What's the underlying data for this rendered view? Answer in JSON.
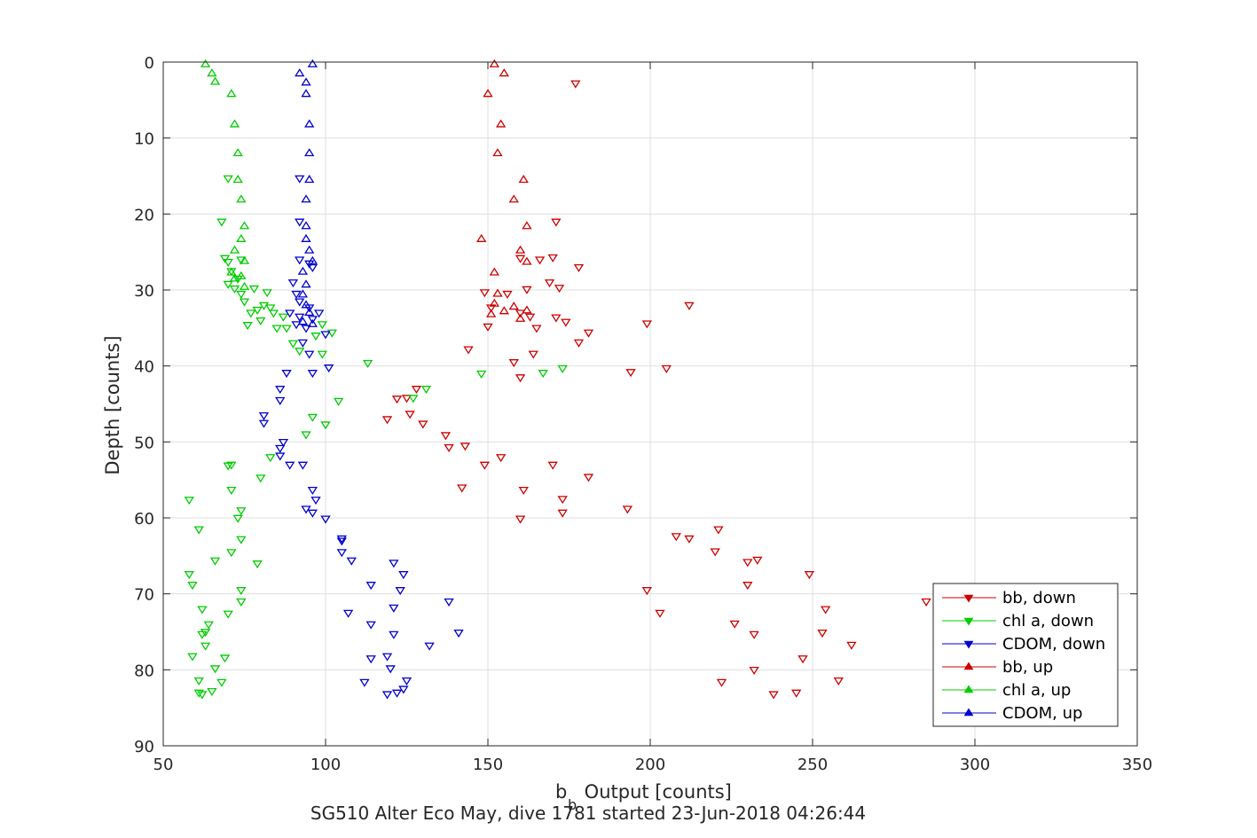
{
  "chart_data": {
    "type": "scatter",
    "xlabel_main": "b",
    "xlabel_sub": "b",
    "xlabel_rest": " Output [counts]",
    "ylabel": "Depth [counts]",
    "subtitle": "SG510 Alter Eco May, dive 1781 started 23-Jun-2018 04:26:44",
    "xlim": [
      50,
      350
    ],
    "ylim": [
      0,
      90
    ],
    "y_reversed": true,
    "xticks": [
      50,
      100,
      150,
      200,
      250,
      300,
      350
    ],
    "yticks": [
      0,
      10,
      20,
      30,
      40,
      50,
      60,
      70,
      80,
      90
    ],
    "grid": true,
    "legend_position": "bottom-right",
    "series": [
      {
        "name": "bb, down",
        "color": "#cc0000",
        "marker": "triangle-down",
        "points": [
          [
            177,
            2.8
          ],
          [
            171,
            21
          ],
          [
            160,
            25.8
          ],
          [
            166,
            26
          ],
          [
            170,
            25.7
          ],
          [
            178,
            27
          ],
          [
            149,
            30.3
          ],
          [
            156,
            30.5
          ],
          [
            172,
            29.7
          ],
          [
            169,
            29
          ],
          [
            162,
            29.9
          ],
          [
            151,
            32.3
          ],
          [
            160,
            33
          ],
          [
            163,
            33.5
          ],
          [
            171,
            33.6
          ],
          [
            174,
            34.2
          ],
          [
            212,
            32
          ],
          [
            199,
            34.4
          ],
          [
            181,
            35.6
          ],
          [
            178,
            36.9
          ],
          [
            165,
            35
          ],
          [
            150,
            34.8
          ],
          [
            164,
            38.4
          ],
          [
            158,
            39.5
          ],
          [
            160,
            41.5
          ],
          [
            194,
            40.8
          ],
          [
            205,
            40.3
          ],
          [
            144,
            37.8
          ],
          [
            122,
            44.3
          ],
          [
            125,
            44.2
          ],
          [
            128,
            43
          ],
          [
            126,
            46.3
          ],
          [
            119,
            47
          ],
          [
            130,
            47.6
          ],
          [
            137,
            49.1
          ],
          [
            138,
            50.7
          ],
          [
            143,
            50.5
          ],
          [
            149,
            53
          ],
          [
            154,
            52
          ],
          [
            170,
            53
          ],
          [
            181,
            54.6
          ],
          [
            142,
            56
          ],
          [
            161,
            56.3
          ],
          [
            173,
            57.5
          ],
          [
            173,
            59.3
          ],
          [
            160,
            60.1
          ],
          [
            193,
            58.8
          ],
          [
            208,
            62.4
          ],
          [
            212,
            62.7
          ],
          [
            221,
            61.5
          ],
          [
            220,
            64.4
          ],
          [
            230,
            65.8
          ],
          [
            233,
            65.5
          ],
          [
            249,
            67.4
          ],
          [
            230,
            68.8
          ],
          [
            199,
            69.5
          ],
          [
            203,
            72.5
          ],
          [
            226,
            73.9
          ],
          [
            232,
            75.3
          ],
          [
            253,
            75.1
          ],
          [
            254,
            72
          ],
          [
            262,
            76.7
          ],
          [
            285,
            71
          ],
          [
            247,
            78.5
          ],
          [
            232,
            80
          ],
          [
            222,
            81.6
          ],
          [
            238,
            83.2
          ],
          [
            245,
            83
          ],
          [
            258,
            81.4
          ]
        ]
      },
      {
        "name": "chl a, down",
        "color": "#00cc00",
        "marker": "triangle-down",
        "points": [
          [
            70,
            15.3
          ],
          [
            68,
            21
          ],
          [
            70,
            26.3
          ],
          [
            71,
            27.5
          ],
          [
            69,
            25.8
          ],
          [
            74,
            26
          ],
          [
            73,
            28.5
          ],
          [
            70,
            29.2
          ],
          [
            72,
            29.8
          ],
          [
            74,
            30.5
          ],
          [
            75,
            31.5
          ],
          [
            78,
            29.8
          ],
          [
            82,
            30.3
          ],
          [
            81,
            32
          ],
          [
            77,
            33
          ],
          [
            79,
            32.6
          ],
          [
            84,
            33
          ],
          [
            87,
            33.5
          ],
          [
            76,
            34.6
          ],
          [
            80,
            34
          ],
          [
            85,
            35
          ],
          [
            88,
            35
          ],
          [
            83,
            32.3
          ],
          [
            99,
            34.5
          ],
          [
            97,
            36
          ],
          [
            90,
            37
          ],
          [
            92,
            38
          ],
          [
            102,
            35.6
          ],
          [
            99,
            38.4
          ],
          [
            113,
            39.6
          ],
          [
            148,
            41
          ],
          [
            167,
            40.9
          ],
          [
            173,
            40.3
          ],
          [
            104,
            44.6
          ],
          [
            127,
            44.2
          ],
          [
            131,
            43
          ],
          [
            96,
            46.7
          ],
          [
            100,
            47.7
          ],
          [
            94,
            49
          ],
          [
            71,
            53
          ],
          [
            70,
            53.1
          ],
          [
            83,
            52
          ],
          [
            80,
            54.7
          ],
          [
            74,
            59
          ],
          [
            71,
            56.3
          ],
          [
            58,
            57.6
          ],
          [
            73,
            60
          ],
          [
            61,
            61.5
          ],
          [
            74,
            62.8
          ],
          [
            71,
            64.5
          ],
          [
            66,
            65.6
          ],
          [
            79,
            66
          ],
          [
            58,
            67.4
          ],
          [
            59,
            68.8
          ],
          [
            74,
            69.5
          ],
          [
            74,
            71
          ],
          [
            70,
            72.6
          ],
          [
            62,
            72
          ],
          [
            64,
            74
          ],
          [
            62,
            75.3
          ],
          [
            63,
            75
          ],
          [
            63,
            76.8
          ],
          [
            59,
            78.2
          ],
          [
            69,
            78.4
          ],
          [
            66,
            79.8
          ],
          [
            61,
            81.4
          ],
          [
            68,
            81.6
          ],
          [
            65,
            82.8
          ],
          [
            61,
            83
          ],
          [
            62,
            83.2
          ]
        ]
      },
      {
        "name": "CDOM, down",
        "color": "#0000cc",
        "marker": "triangle-down",
        "points": [
          [
            92,
            15.3
          ],
          [
            92,
            21
          ],
          [
            92,
            26
          ],
          [
            95,
            26.5
          ],
          [
            96,
            27
          ],
          [
            90,
            29
          ],
          [
            91,
            30.5
          ],
          [
            92,
            31.5
          ],
          [
            95,
            32.3
          ],
          [
            89,
            33
          ],
          [
            92,
            33.5
          ],
          [
            96,
            33.8
          ],
          [
            91,
            34.5
          ],
          [
            94,
            35
          ],
          [
            98,
            33
          ],
          [
            93,
            36.9
          ],
          [
            100,
            35.8
          ],
          [
            95,
            38.4
          ],
          [
            101,
            40.2
          ],
          [
            96,
            40.9
          ],
          [
            88,
            40.9
          ],
          [
            86,
            43
          ],
          [
            86,
            44.5
          ],
          [
            81,
            46.5
          ],
          [
            81,
            47.5
          ],
          [
            87,
            50
          ],
          [
            86,
            50.8
          ],
          [
            86,
            51.8
          ],
          [
            89,
            53
          ],
          [
            93,
            53
          ],
          [
            96,
            56.3
          ],
          [
            97,
            57.6
          ],
          [
            94,
            58.8
          ],
          [
            96,
            59.3
          ],
          [
            100,
            60.1
          ],
          [
            105,
            62.7
          ],
          [
            105,
            63
          ],
          [
            105,
            64.5
          ],
          [
            108,
            65.6
          ],
          [
            121,
            65.9
          ],
          [
            124,
            67.4
          ],
          [
            114,
            68.8
          ],
          [
            123,
            69.5
          ],
          [
            138,
            71
          ],
          [
            121,
            71.8
          ],
          [
            107,
            72.5
          ],
          [
            114,
            74
          ],
          [
            121,
            75.3
          ],
          [
            141,
            75.1
          ],
          [
            132,
            76.8
          ],
          [
            114,
            78.5
          ],
          [
            119,
            78.2
          ],
          [
            120,
            79.8
          ],
          [
            112,
            81.6
          ],
          [
            125,
            81.4
          ],
          [
            124,
            82.5
          ],
          [
            122,
            83
          ],
          [
            119,
            83.2
          ]
        ]
      },
      {
        "name": "bb, up",
        "color": "#cc0000",
        "marker": "triangle-up",
        "points": [
          [
            152,
            0.3
          ],
          [
            155,
            1.5
          ],
          [
            150,
            4.2
          ],
          [
            154,
            8.2
          ],
          [
            153,
            12
          ],
          [
            161,
            15.5
          ],
          [
            158,
            18.1
          ],
          [
            162,
            21.6
          ],
          [
            148,
            23.3
          ],
          [
            160,
            24.8
          ],
          [
            162,
            26.3
          ],
          [
            152,
            27.7
          ],
          [
            153,
            30.5
          ],
          [
            152,
            31.8
          ],
          [
            155,
            32.8
          ],
          [
            158,
            32.2
          ],
          [
            162,
            32.7
          ],
          [
            160,
            33.8
          ],
          [
            151,
            33.2
          ]
        ]
      },
      {
        "name": "chl a, up",
        "color": "#00cc00",
        "marker": "triangle-up",
        "points": [
          [
            63,
            0.3
          ],
          [
            65,
            1.5
          ],
          [
            66,
            2.6
          ],
          [
            71,
            4.2
          ],
          [
            72,
            8.2
          ],
          [
            73,
            12
          ],
          [
            73,
            15.5
          ],
          [
            74,
            18.1
          ],
          [
            75,
            21.6
          ],
          [
            74,
            23.3
          ],
          [
            72,
            24.8
          ],
          [
            75,
            26.2
          ],
          [
            71,
            27.7
          ],
          [
            72,
            28.5
          ],
          [
            74,
            28.2
          ],
          [
            75,
            29.6
          ]
        ]
      },
      {
        "name": "CDOM, up",
        "color": "#0000cc",
        "marker": "triangle-up",
        "points": [
          [
            96,
            0.3
          ],
          [
            92,
            1.5
          ],
          [
            94,
            2.7
          ],
          [
            94,
            4.2
          ],
          [
            95,
            8.2
          ],
          [
            95,
            12
          ],
          [
            95,
            15.5
          ],
          [
            94,
            18.1
          ],
          [
            94,
            21.6
          ],
          [
            94,
            23.3
          ],
          [
            95,
            24.8
          ],
          [
            96,
            26.2
          ],
          [
            93,
            27.6
          ],
          [
            94,
            29.3
          ],
          [
            93,
            30.6
          ],
          [
            94,
            32
          ],
          [
            95,
            33
          ],
          [
            93,
            34.2
          ],
          [
            96,
            34.5
          ]
        ]
      }
    ]
  }
}
